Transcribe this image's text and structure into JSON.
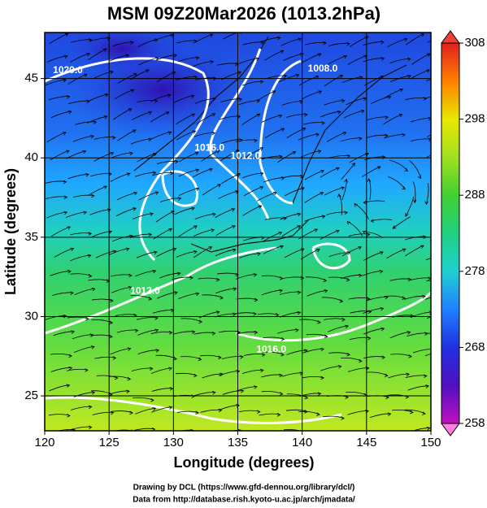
{
  "chart_data": {
    "type": "map",
    "title": "MSM 09Z20Mar2026 (1013.2hPa)",
    "x_label": "Longitude (degrees)",
    "y_label": "Latitude  (degrees)",
    "xlim": [
      120,
      150
    ],
    "ylim": [
      22.8,
      47.9
    ],
    "xticks": [
      120,
      125,
      130,
      135,
      140,
      145,
      150
    ],
    "yticks": [
      25,
      30,
      35,
      40,
      45
    ],
    "grid": true,
    "contour_labels": [
      {
        "label": "1020.0",
        "lon": 121.8,
        "lat": 45.5
      },
      {
        "label": "1016.0",
        "lon": 132.8,
        "lat": 40.6
      },
      {
        "label": "1012.0",
        "lon": 135.6,
        "lat": 40.1
      },
      {
        "label": "1008.0",
        "lon": 141.6,
        "lat": 45.6
      },
      {
        "label": "1012.0",
        "lon": 127.8,
        "lat": 31.6
      },
      {
        "label": "1016.0",
        "lon": 137.6,
        "lat": 27.9
      }
    ],
    "colorbar": {
      "lim": [
        258,
        308
      ],
      "ticks": [
        258,
        268,
        278,
        288,
        298,
        308
      ],
      "colors": [
        "#c010c0",
        "#5010c0",
        "#2030e0",
        "#2080ff",
        "#20d0d0",
        "#20d080",
        "#40d030",
        "#a0e020",
        "#e8e800",
        "#ff8000",
        "#e02020"
      ]
    },
    "credits": [
      "Drawing by DCL (https://www.gfd-dennou.org/library/dcl/)",
      "Data from http://database.rish.kyoto-u.ac.jp/arch/jmadata/"
    ]
  }
}
